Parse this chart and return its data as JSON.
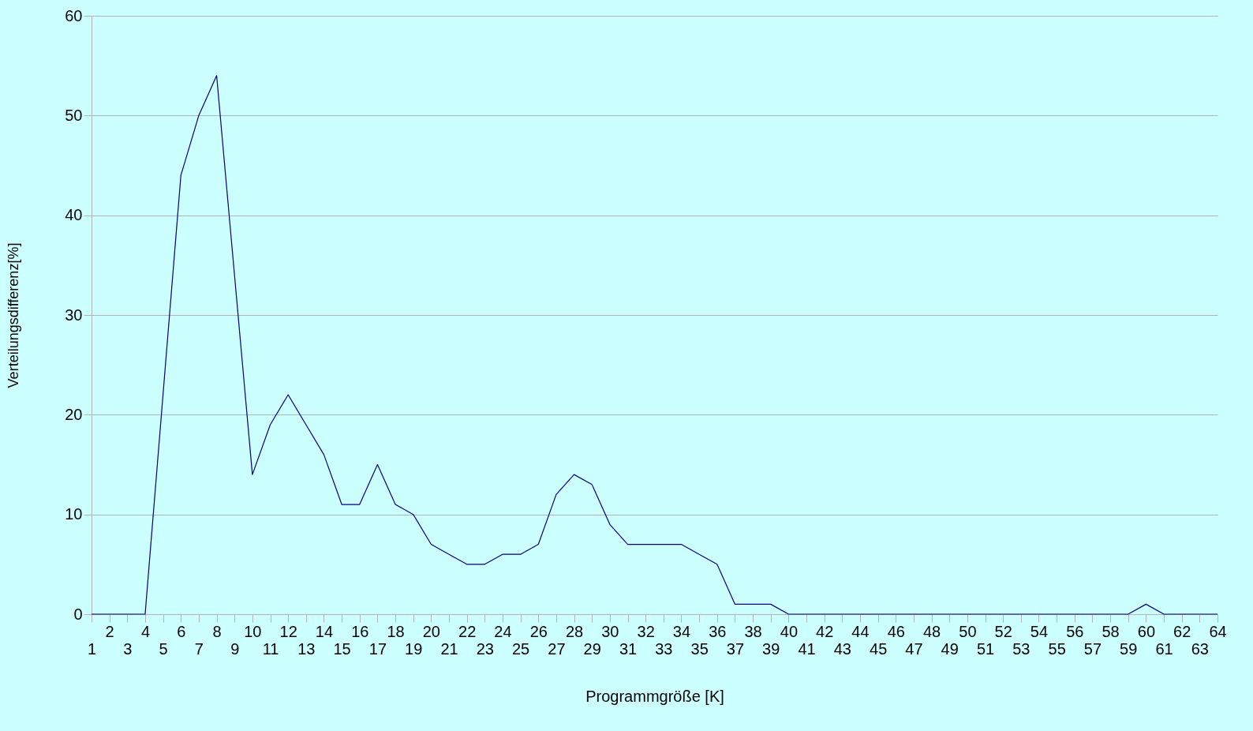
{
  "chart_data": {
    "type": "line",
    "xlabel": "Programmgröße [K]",
    "ylabel": "Verteilungsdifferenz[%]",
    "categories": [
      "1",
      "2",
      "3",
      "4",
      "5",
      "6",
      "7",
      "8",
      "9",
      "10",
      "11",
      "12",
      "13",
      "14",
      "15",
      "16",
      "17",
      "18",
      "19",
      "20",
      "21",
      "22",
      "23",
      "24",
      "25",
      "26",
      "27",
      "28",
      "29",
      "30",
      "31",
      "32",
      "33",
      "34",
      "35",
      "36",
      "37",
      "38",
      "39",
      "40",
      "41",
      "42",
      "43",
      "44",
      "45",
      "46",
      "47",
      "48",
      "49",
      "50",
      "51",
      "52",
      "53",
      "54",
      "55",
      "56",
      "57",
      "58",
      "59",
      "60",
      "61",
      "62",
      "63",
      "64"
    ],
    "series": [
      {
        "color": "#000080",
        "values": [
          0,
          0,
          0,
          0,
          22,
          44,
          50,
          54,
          34,
          14,
          19,
          22,
          19,
          16,
          11,
          11,
          15,
          11,
          10,
          7,
          6,
          5,
          5,
          6,
          6,
          7,
          12,
          14,
          13,
          9,
          7,
          7,
          7,
          7,
          6,
          5,
          1,
          1,
          1,
          0,
          0,
          0,
          0,
          0,
          0,
          0,
          0,
          0,
          0,
          0,
          0,
          0,
          0,
          0,
          0,
          0,
          0,
          0,
          0,
          1,
          0,
          0,
          0,
          0
        ]
      }
    ],
    "ylim": [
      0,
      60
    ],
    "yticks": [
      0,
      10,
      20,
      30,
      40,
      50,
      60
    ],
    "grid": "y"
  }
}
